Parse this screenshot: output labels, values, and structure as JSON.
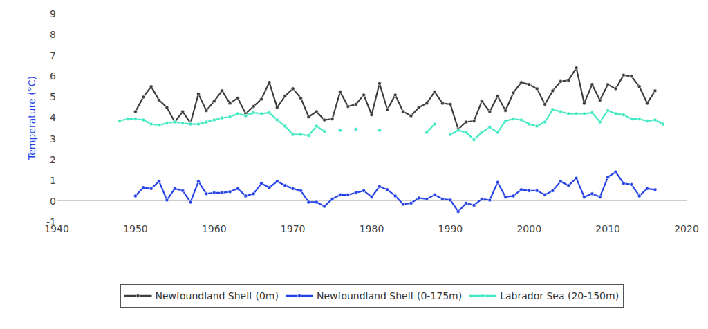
{
  "chart_data": {
    "type": "line",
    "y_label": "Temperature (°C)",
    "x": [
      1948,
      1949,
      1950,
      1951,
      1952,
      1953,
      1954,
      1955,
      1956,
      1957,
      1958,
      1959,
      1960,
      1961,
      1962,
      1963,
      1964,
      1965,
      1966,
      1967,
      1968,
      1969,
      1970,
      1971,
      1972,
      1973,
      1974,
      1975,
      1976,
      1977,
      1978,
      1979,
      1980,
      1981,
      1982,
      1983,
      1984,
      1985,
      1986,
      1987,
      1988,
      1989,
      1990,
      1991,
      1992,
      1993,
      1994,
      1995,
      1996,
      1997,
      1998,
      1999,
      2000,
      2001,
      2002,
      2003,
      2004,
      2005,
      2006,
      2007,
      2008,
      2009,
      2010,
      2011,
      2012,
      2013,
      2014,
      2015,
      2016,
      2017
    ],
    "series": [
      {
        "name": "Newfoundland Shelf (0m)",
        "color": "#3d3d3d",
        "marker": "circle",
        "values": [
          null,
          null,
          4.3,
          5.0,
          5.5,
          4.85,
          4.5,
          3.8,
          4.3,
          3.75,
          5.15,
          4.35,
          4.8,
          5.3,
          4.7,
          4.95,
          4.2,
          4.55,
          4.9,
          5.7,
          4.5,
          5.05,
          5.4,
          4.95,
          4.05,
          4.3,
          3.9,
          3.95,
          5.25,
          4.55,
          4.65,
          5.1,
          4.15,
          5.65,
          4.4,
          5.1,
          4.3,
          4.1,
          4.5,
          4.7,
          5.25,
          4.7,
          4.65,
          3.45,
          3.8,
          3.85,
          4.8,
          4.3,
          5.05,
          4.35,
          5.2,
          5.7,
          5.6,
          5.4,
          4.65,
          5.3,
          5.75,
          5.8,
          6.4,
          4.7,
          5.6,
          4.85,
          5.6,
          5.4,
          6.05,
          6.0,
          5.5,
          4.7,
          5.3,
          null
        ]
      },
      {
        "name": "Newfoundland Shelf (0-175m)",
        "color": "#2541e6",
        "marker": "circle",
        "values": [
          null,
          null,
          0.25,
          0.65,
          0.6,
          0.95,
          0.05,
          0.6,
          0.5,
          -0.05,
          0.95,
          0.35,
          0.4,
          0.4,
          0.45,
          0.6,
          0.25,
          0.35,
          0.85,
          0.65,
          0.95,
          0.75,
          0.6,
          0.5,
          -0.05,
          -0.05,
          -0.25,
          0.1,
          0.3,
          0.3,
          0.4,
          0.5,
          0.2,
          0.7,
          0.55,
          0.25,
          -0.15,
          -0.1,
          0.15,
          0.1,
          0.3,
          0.1,
          0.05,
          -0.5,
          -0.1,
          -0.2,
          0.1,
          0.05,
          0.9,
          0.2,
          0.25,
          0.55,
          0.5,
          0.5,
          0.3,
          0.5,
          0.95,
          0.75,
          1.1,
          0.2,
          0.35,
          0.2,
          1.15,
          1.4,
          0.85,
          0.8,
          0.25,
          0.6,
          0.55,
          null
        ]
      },
      {
        "name": "Labrador Sea (20-150m)",
        "color": "#3ee8c2",
        "marker": "circle",
        "values": [
          3.85,
          3.95,
          3.95,
          3.9,
          3.7,
          3.65,
          3.75,
          3.8,
          3.75,
          3.7,
          3.7,
          3.8,
          3.9,
          4.0,
          4.05,
          4.2,
          4.1,
          4.25,
          4.2,
          4.25,
          3.9,
          3.6,
          3.2,
          3.2,
          3.15,
          3.6,
          3.35,
          null,
          3.4,
          null,
          3.45,
          null,
          null,
          3.4,
          null,
          null,
          null,
          null,
          null,
          3.3,
          3.7,
          null,
          3.2,
          3.4,
          3.3,
          2.95,
          3.3,
          3.55,
          3.3,
          3.85,
          3.95,
          3.9,
          3.7,
          3.6,
          3.8,
          4.4,
          4.3,
          4.2,
          4.2,
          4.2,
          4.25,
          3.8,
          4.35,
          4.2,
          4.15,
          3.95,
          3.95,
          3.85,
          3.9,
          3.7
        ]
      }
    ],
    "xlim": [
      1940,
      2020
    ],
    "xticks": [
      1940,
      1950,
      1960,
      1970,
      1980,
      1990,
      2000,
      2010,
      2020
    ],
    "ylim": [
      -1,
      9
    ],
    "yticks": [
      -1,
      0,
      1,
      2,
      3,
      4,
      5,
      6,
      7,
      8,
      9
    ],
    "grid": false,
    "legend": "bottom"
  }
}
